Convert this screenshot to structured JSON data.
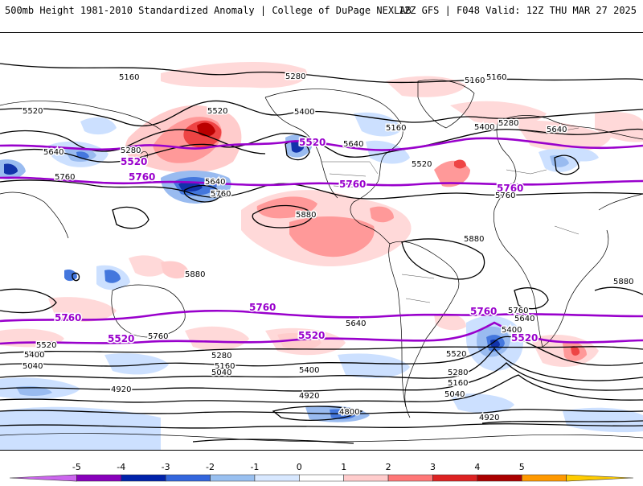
{
  "header": {
    "title": "500mb Height 1981-2010 Standardized Anomaly | College of DuPage NEXLAB",
    "run_info": "12Z GFS | F048 Valid: 12Z THU MAR 27 2025"
  },
  "colors": {
    "contour_height": "#000000",
    "contour_highlight": "#9900cc",
    "neg_light": "#cce0ff",
    "neg_mid": "#99bbf0",
    "neg_strong": "#4477dd",
    "neg_deep": "#1133aa",
    "pos_light": "#ffd9d9",
    "pos_mid": "#ff9999",
    "pos_strong": "#ee4444",
    "pos_deep": "#bb0000"
  },
  "contour_labels": [
    {
      "text": "5160"
    },
    {
      "text": "5280"
    },
    {
      "text": "5160"
    },
    {
      "text": "5160"
    },
    {
      "text": "5520"
    },
    {
      "text": "5520"
    },
    {
      "text": "5400"
    },
    {
      "text": "5160"
    },
    {
      "text": "5280"
    },
    {
      "text": "5640"
    },
    {
      "text": "5640"
    },
    {
      "text": "5400"
    },
    {
      "text": "5280"
    },
    {
      "text": "5520"
    },
    {
      "text": "5640"
    },
    {
      "text": "5760"
    },
    {
      "text": "5520"
    },
    {
      "text": "5520"
    },
    {
      "text": "5760"
    },
    {
      "text": "5640"
    },
    {
      "text": "5760"
    },
    {
      "text": "5760"
    },
    {
      "text": "5760"
    },
    {
      "text": "5760"
    },
    {
      "text": "5880"
    },
    {
      "text": "5880"
    },
    {
      "text": "5880"
    },
    {
      "text": "5880"
    },
    {
      "text": "5760"
    },
    {
      "text": "5760"
    },
    {
      "text": "5760"
    },
    {
      "text": "5760"
    },
    {
      "text": "5640"
    },
    {
      "text": "5640"
    },
    {
      "text": "5400"
    },
    {
      "text": "5520"
    },
    {
      "text": "5520"
    },
    {
      "text": "5520"
    },
    {
      "text": "5520"
    },
    {
      "text": "5400"
    },
    {
      "text": "5280"
    },
    {
      "text": "5160"
    },
    {
      "text": "5040"
    },
    {
      "text": "5040"
    },
    {
      "text": "5400"
    },
    {
      "text": "5520"
    },
    {
      "text": "5280"
    },
    {
      "text": "5160"
    },
    {
      "text": "5040"
    },
    {
      "text": "4920"
    },
    {
      "text": "4920"
    },
    {
      "text": "4800"
    },
    {
      "text": "4920"
    },
    {
      "text": "5760"
    }
  ],
  "colorbar": {
    "ticks": [
      "-5",
      "-4",
      "-3",
      "-2",
      "-1",
      "0",
      "1",
      "2",
      "3",
      "4",
      "5"
    ],
    "colors": [
      "#cc66ee",
      "#8800bb",
      "#0022aa",
      "#3366dd",
      "#99c0f0",
      "#d8e8ff",
      "#ffffff",
      "#ffcccc",
      "#ff7777",
      "#dd2222",
      "#aa0000",
      "#ff9900",
      "#ffcc00"
    ]
  }
}
